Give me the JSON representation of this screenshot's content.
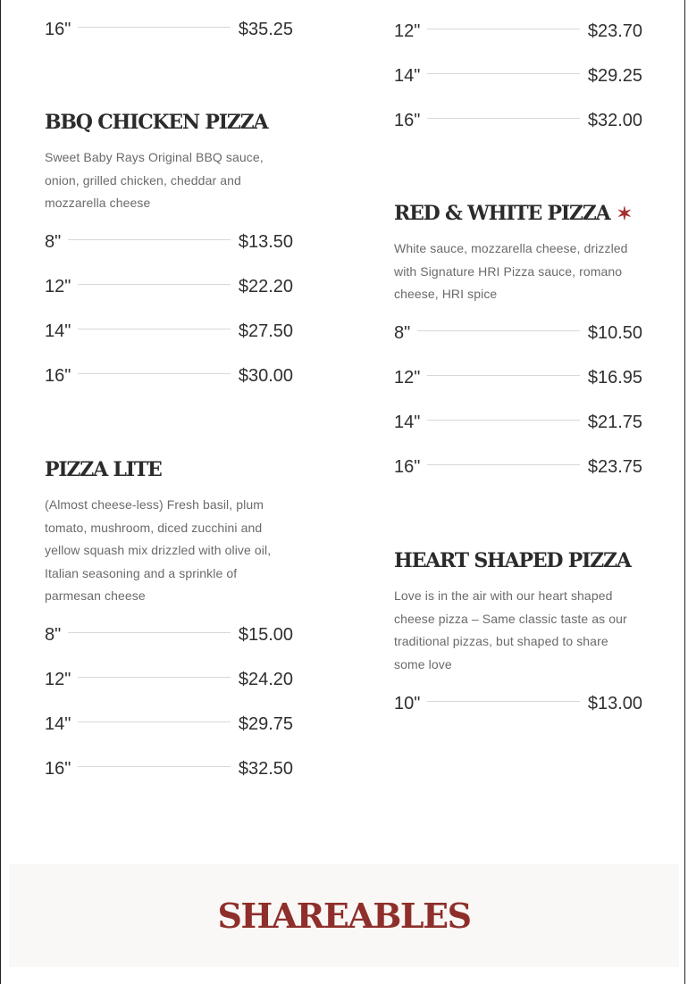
{
  "colors": {
    "accent": "#8e2f2b",
    "band_bg": "#faf8f6"
  },
  "left_column": [
    {
      "title": "",
      "description": "",
      "sizes": [
        {
          "size": "16\"",
          "price": "$35.25"
        }
      ]
    },
    {
      "title": "BBQ CHICKEN PIZZA",
      "description": "Sweet Baby Rays Original BBQ sauce, onion, grilled chicken, cheddar and mozzarella cheese",
      "sizes": [
        {
          "size": "8\"",
          "price": "$13.50"
        },
        {
          "size": "12\"",
          "price": "$22.20"
        },
        {
          "size": "14\"",
          "price": "$27.50"
        },
        {
          "size": "16\"",
          "price": "$30.00"
        }
      ]
    },
    {
      "title": "PIZZA LITE",
      "description": "(Almost cheese-less) Fresh basil, plum tomato, mushroom, diced zucchini and yellow squash mix drizzled with olive oil, Italian seasoning and a sprinkle of parmesan cheese",
      "sizes": [
        {
          "size": "8\"",
          "price": "$15.00"
        },
        {
          "size": "12\"",
          "price": "$24.20"
        },
        {
          "size": "14\"",
          "price": "$29.75"
        },
        {
          "size": "16\"",
          "price": "$32.50"
        }
      ]
    }
  ],
  "right_column": [
    {
      "title": "",
      "description": "",
      "sizes": [
        {
          "size": "12\"",
          "price": "$23.70"
        },
        {
          "size": "14\"",
          "price": "$29.25"
        },
        {
          "size": "16\"",
          "price": "$32.00"
        }
      ]
    },
    {
      "title": "RED & WHITE PIZZA",
      "signature_icon": "star-icon",
      "description": "White sauce, mozzarella cheese, drizzled with Signature HRI Pizza sauce, romano cheese, HRI spice",
      "sizes": [
        {
          "size": "8\"",
          "price": "$10.50"
        },
        {
          "size": "12\"",
          "price": "$16.95"
        },
        {
          "size": "14\"",
          "price": "$21.75"
        },
        {
          "size": "16\"",
          "price": "$23.75"
        }
      ]
    },
    {
      "title": "HEART SHAPED PIZZA",
      "description": "Love is in the air with our heart shaped cheese pizza – Same classic taste as our traditional pizzas, but shaped to share some love",
      "sizes": [
        {
          "size": "10\"",
          "price": "$13.00"
        }
      ]
    }
  ],
  "section_heading": "SHAREABLES"
}
